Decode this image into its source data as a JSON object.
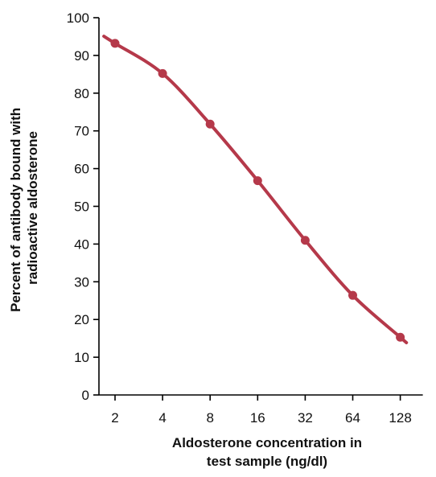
{
  "chart_data": {
    "type": "line",
    "title": "",
    "xlabel_lines": [
      "Aldosterone concentration in",
      "test sample (ng/dl)"
    ],
    "ylabel_lines": [
      "Percent of antibody bound with",
      "radioactive aldosterone"
    ],
    "x_scale": "log2",
    "x_ticks": [
      "2",
      "4",
      "8",
      "16",
      "32",
      "64",
      "128"
    ],
    "x_tick_values": [
      2,
      4,
      8,
      16,
      32,
      64,
      128
    ],
    "y_ticks": [
      "0",
      "10",
      "20",
      "30",
      "40",
      "50",
      "60",
      "70",
      "80",
      "90",
      "100"
    ],
    "ylim": [
      0,
      100
    ],
    "grid": false,
    "series": [
      {
        "color": "#b5394a",
        "points": [
          {
            "x": 2,
            "y": 93.2
          },
          {
            "x": 4,
            "y": 85.2
          },
          {
            "x": 8,
            "y": 71.8
          },
          {
            "x": 16,
            "y": 56.8
          },
          {
            "x": 32,
            "y": 41.0
          },
          {
            "x": 64,
            "y": 26.4
          },
          {
            "x": 128,
            "y": 15.3
          }
        ],
        "curve_extends_to": [
          1.7,
          140
        ]
      }
    ],
    "axis_color": "#000000"
  }
}
